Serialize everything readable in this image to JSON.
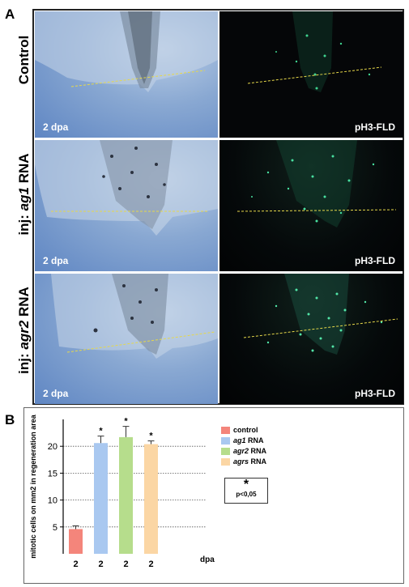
{
  "panel_a": {
    "letter": "A",
    "rows": [
      {
        "label_plain": "Control",
        "label_prefix": "",
        "label_italic": "",
        "label_suffix": "",
        "left_caption": "2 dpa",
        "right_caption": "pH3-FLD"
      },
      {
        "label_plain": "",
        "label_prefix": "inj: ",
        "label_italic": "ag1",
        "label_suffix": " RNA",
        "left_caption": "2 dpa",
        "right_caption": "pH3-FLD"
      },
      {
        "label_plain": "",
        "label_prefix": "inj: ",
        "label_italic": "agr2",
        "label_suffix": " RNA",
        "left_caption": "2 dpa",
        "right_caption": "pH3-FLD"
      }
    ]
  },
  "panel_b": {
    "letter": "B",
    "legend": [
      {
        "italic": "",
        "plain": "control",
        "color": "#f4857b"
      },
      {
        "italic": "ag1",
        "plain": " RNA",
        "color": "#a9c8f0"
      },
      {
        "italic": "agr2",
        "plain": " RNA",
        "color": "#b6dd8c"
      },
      {
        "italic": "agrs",
        "plain": " RNA",
        "color": "#fbd6a4"
      }
    ],
    "significance": {
      "symbol": "*",
      "text": "p<0,05"
    }
  },
  "chart_data": {
    "type": "bar",
    "categories": [
      "2",
      "2",
      "2",
      "2"
    ],
    "series": [
      {
        "values": [
          4.6,
          20.6,
          21.7,
          20.4
        ],
        "errors": [
          0.6,
          1.3,
          2.0,
          0.6
        ],
        "significant": [
          false,
          true,
          true,
          true
        ]
      }
    ],
    "colors": [
      "#f4857b",
      "#a9c8f0",
      "#b6dd8c",
      "#fbd6a4"
    ],
    "ylabel": "mitotic cells on mm2 in regeneration area",
    "xlabel": "dpa",
    "ylim": [
      0,
      25
    ],
    "yticks": [
      5,
      10,
      15,
      20
    ],
    "grid": true,
    "legend_position": "right"
  }
}
